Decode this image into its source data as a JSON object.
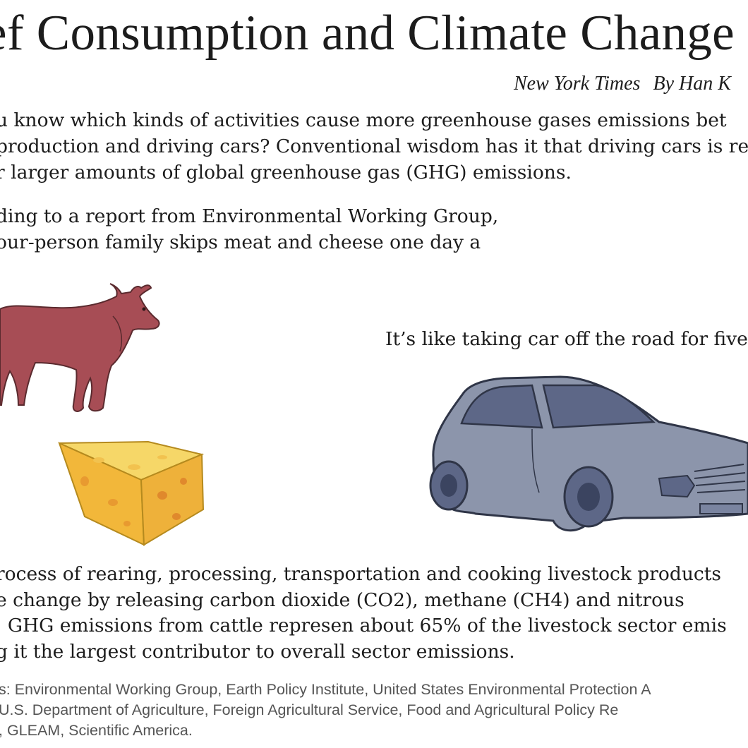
{
  "title": "ef Consumption and Climate Change",
  "byline": {
    "source": "New York Times",
    "author": "By Han K"
  },
  "intro": {
    "lines": [
      "u know which kinds of activities cause more greenhouse gases emissions bet",
      "production and driving cars? Conventional wisdom has it that driving cars is resp",
      "r larger amounts of global greenhouse gas (GHG) emissions."
    ]
  },
  "report": {
    "lines": [
      "ding to a report from Environmental Working Group,",
      "our-person family skips meat and cheese one day a"
    ]
  },
  "car_caption": "It’s like taking car off the road for five",
  "process": {
    "lines": [
      "rocess of rearing, processing, transportation and cooking livestock products",
      "e change by releasing carbon dioxide (CO2), methane (CH4) and nitrous",
      ". GHG emissions from cattle represen about 65% of the livestock sector emis",
      "g it the largest contributor to overall sector emissions."
    ]
  },
  "sources": {
    "lines": [
      "s: Environmental Working Group, Earth Policy Institute, United States Environmental Protection A",
      "U.S. Department of Agriculture, Foreign Agricultural Service, Food and Agricultural Policy Re",
      ", GLEAM, Scientific America."
    ]
  },
  "colors": {
    "cow": "#a74d55",
    "cheese": "#f3c34a",
    "car": "#8c95ab",
    "car_dark": "#5d6787"
  }
}
